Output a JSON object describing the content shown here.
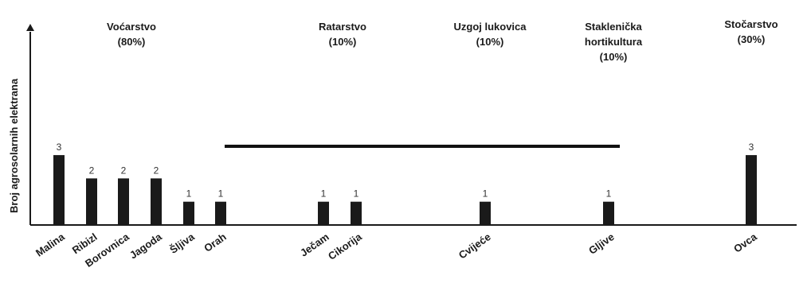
{
  "chart_data": {
    "type": "bar",
    "ylabel": "Broj agrosolarnih elektrana",
    "ylim": [
      0,
      3
    ],
    "grid": false,
    "bar_color": "#1a1a1a",
    "categories": [
      "Malina",
      "Ribizl",
      "Borovnica",
      "Jagoda",
      "Šljiva",
      "Orah",
      "Ječam",
      "Cikorija",
      "Cvijeće",
      "Gljive",
      "Ovca"
    ],
    "values": [
      3,
      2,
      2,
      2,
      1,
      1,
      1,
      1,
      1,
      1,
      3
    ],
    "value_labels": [
      "3",
      "2",
      "2",
      "2",
      "1",
      "1",
      "1",
      "1",
      "1",
      "1",
      "3"
    ],
    "groups": [
      {
        "lines": [
          "Voćarstvo",
          "(80%)"
        ]
      },
      {
        "lines": [
          "Ratarstvo",
          "(10%)"
        ]
      },
      {
        "lines": [
          "Uzgoj lukovica",
          "(10%)"
        ]
      },
      {
        "lines": [
          "Staklenička",
          "hortikultura",
          "(10%)"
        ]
      },
      {
        "lines": [
          "Stočarstvo",
          "(30%)"
        ]
      }
    ]
  }
}
